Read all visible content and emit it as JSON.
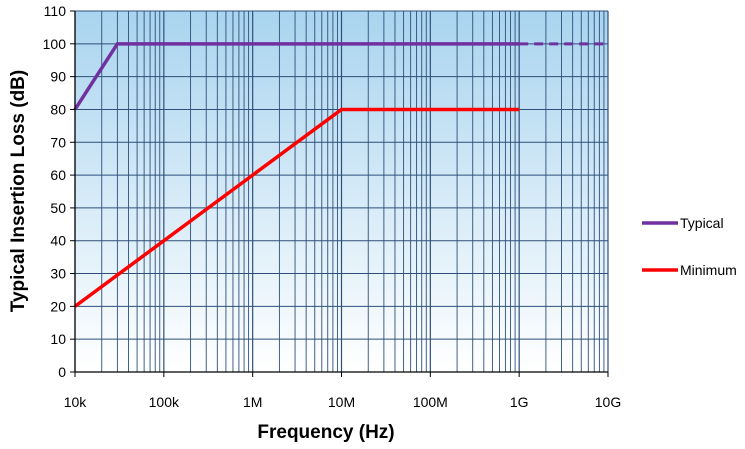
{
  "chart_data": {
    "type": "line",
    "title": "",
    "xlabel": "Frequency (Hz)",
    "ylabel": "Typical Insertion Loss (dB)",
    "x_scale": "log",
    "xlim": [
      10000,
      10000000000
    ],
    "ylim": [
      0,
      110
    ],
    "y_ticks": [
      0,
      10,
      20,
      30,
      40,
      50,
      60,
      70,
      80,
      90,
      100,
      110
    ],
    "x_ticks": [
      {
        "value": 10000,
        "label": "10k"
      },
      {
        "value": 100000,
        "label": "100k"
      },
      {
        "value": 1000000,
        "label": "1M"
      },
      {
        "value": 10000000,
        "label": "10M"
      },
      {
        "value": 100000000,
        "label": "100M"
      },
      {
        "value": 1000000000,
        "label": "1G"
      },
      {
        "value": 10000000000,
        "label": "10G"
      }
    ],
    "grid": true,
    "legend_position": "right",
    "colors": {
      "plot_bg_top": "#a9d4ef",
      "plot_bg_bottom": "#ffffff",
      "grid": "#2e4f7a"
    },
    "series": [
      {
        "name": "Typical",
        "color": "#7030a0",
        "points": [
          [
            10000,
            80
          ],
          [
            30000,
            100
          ],
          [
            1000000000,
            100
          ]
        ],
        "dashed_points": [
          [
            1000000000,
            100
          ],
          [
            10000000000,
            100
          ]
        ]
      },
      {
        "name": "Minimum",
        "color": "#ff0000",
        "points": [
          [
            10000,
            20
          ],
          [
            10000000,
            80
          ],
          [
            1000000000,
            80
          ]
        ]
      }
    ]
  }
}
